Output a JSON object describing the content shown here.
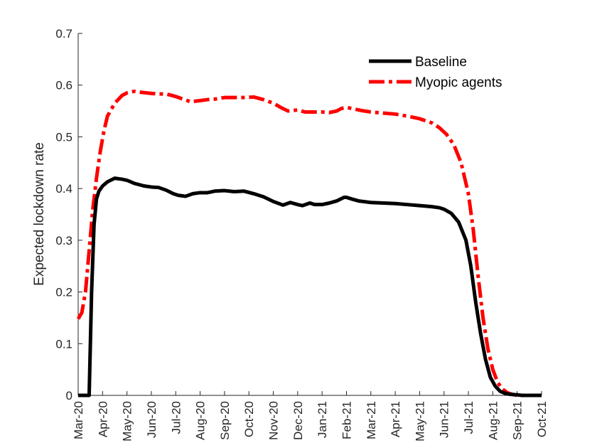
{
  "chart_data": {
    "type": "line",
    "title": "",
    "xlabel": "",
    "ylabel": "Expected lockdown rate",
    "ylim": [
      0,
      0.7
    ],
    "yticks": [
      "0",
      "0.1",
      "0.2",
      "0.3",
      "0.4",
      "0.5",
      "0.6",
      "0.7"
    ],
    "xticks": [
      "Mar-20",
      "Apr-20",
      "May-20",
      "Jun-20",
      "Jul-20",
      "Aug-20",
      "Sep-20",
      "Oct-20",
      "Nov-20",
      "Dec-20",
      "Jan-21",
      "Feb-21",
      "Mar-21",
      "Apr-21",
      "May-21",
      "Jun-21",
      "Jul-21",
      "Aug-21",
      "Sep-21",
      "Oct-21"
    ],
    "grid": false,
    "legend_position": "top-right",
    "series": [
      {
        "name": "Baseline",
        "color": "#000000",
        "style": "solid",
        "x": [
          0,
          0.3,
          0.45,
          0.55,
          0.65,
          0.75,
          0.85,
          1.0,
          1.2,
          1.5,
          1.8,
          2.0,
          2.3,
          2.7,
          3.0,
          3.3,
          3.6,
          3.9,
          4.1,
          4.4,
          4.7,
          5.0,
          5.3,
          5.6,
          6.0,
          6.4,
          6.8,
          7.2,
          7.6,
          8.0,
          8.4,
          8.7,
          9.0,
          9.2,
          9.5,
          9.7,
          10.0,
          10.3,
          10.6,
          10.9,
          11.0,
          11.2,
          11.5,
          12.0,
          12.5,
          13.0,
          13.5,
          14.0,
          14.5,
          14.8,
          15.0,
          15.3,
          15.6,
          15.9,
          16.1,
          16.3,
          16.5,
          16.7,
          16.9,
          17.1,
          17.3,
          17.5,
          17.7,
          18.0,
          18.2,
          18.5,
          19.0
        ],
        "y": [
          0.0,
          0.0,
          0.0,
          0.2,
          0.33,
          0.38,
          0.395,
          0.405,
          0.413,
          0.42,
          0.418,
          0.416,
          0.41,
          0.405,
          0.403,
          0.402,
          0.397,
          0.39,
          0.387,
          0.385,
          0.39,
          0.392,
          0.392,
          0.395,
          0.396,
          0.394,
          0.395,
          0.39,
          0.384,
          0.375,
          0.368,
          0.373,
          0.369,
          0.367,
          0.372,
          0.369,
          0.369,
          0.372,
          0.376,
          0.383,
          0.383,
          0.38,
          0.376,
          0.373,
          0.372,
          0.371,
          0.369,
          0.367,
          0.365,
          0.363,
          0.36,
          0.352,
          0.335,
          0.3,
          0.25,
          0.18,
          0.12,
          0.07,
          0.035,
          0.018,
          0.008,
          0.004,
          0.002,
          0.001,
          0.0,
          0.0,
          0.0
        ]
      },
      {
        "name": "Myopic agents",
        "color": "#ff0000",
        "style": "dashdot",
        "x": [
          0,
          0.15,
          0.3,
          0.45,
          0.6,
          0.75,
          0.9,
          1.05,
          1.2,
          1.5,
          1.8,
          2.0,
          2.3,
          2.6,
          3.0,
          3.3,
          3.6,
          4.0,
          4.3,
          4.6,
          5.0,
          5.3,
          5.6,
          6.0,
          6.4,
          6.8,
          7.2,
          7.6,
          8.0,
          8.3,
          8.6,
          9.0,
          9.3,
          9.6,
          10.0,
          10.3,
          10.6,
          10.8,
          11.0,
          11.3,
          11.6,
          12.0,
          12.5,
          13.0,
          13.5,
          14.0,
          14.5,
          14.8,
          15.1,
          15.4,
          15.7,
          16.0,
          16.2,
          16.4,
          16.6,
          16.8,
          17.0,
          17.2,
          17.4,
          17.6,
          17.8,
          18.0,
          18.2,
          18.5,
          19.0
        ],
        "y": [
          0.148,
          0.16,
          0.2,
          0.28,
          0.36,
          0.42,
          0.47,
          0.51,
          0.54,
          0.565,
          0.58,
          0.585,
          0.588,
          0.586,
          0.584,
          0.583,
          0.583,
          0.578,
          0.573,
          0.568,
          0.57,
          0.572,
          0.573,
          0.576,
          0.576,
          0.576,
          0.577,
          0.572,
          0.565,
          0.557,
          0.55,
          0.552,
          0.548,
          0.548,
          0.548,
          0.547,
          0.55,
          0.555,
          0.557,
          0.554,
          0.551,
          0.548,
          0.546,
          0.544,
          0.54,
          0.535,
          0.527,
          0.518,
          0.505,
          0.485,
          0.45,
          0.39,
          0.32,
          0.23,
          0.15,
          0.09,
          0.05,
          0.025,
          0.012,
          0.005,
          0.002,
          0.0,
          0.0,
          0.0,
          0.0
        ]
      }
    ]
  }
}
